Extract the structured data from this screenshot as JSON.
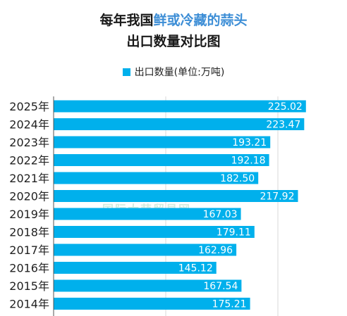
{
  "header": {
    "title_prefix": "每年我国",
    "title_highlight": "鲜或冷藏的蒜头",
    "title_line2": "出口数量对比图"
  },
  "legend": {
    "label": "出口数量(单位:万吨)"
  },
  "watermark": "国际大蒜贸易网",
  "colors": {
    "bar": "#00b0ec",
    "highlight": "#3d8ed6",
    "grid": "#d9d9d9"
  },
  "chart_data": {
    "type": "bar",
    "orientation": "horizontal",
    "categories": [
      "2025年",
      "2024年",
      "2023年",
      "2022年",
      "2021年",
      "2020年",
      "2019年",
      "2018年",
      "2017年",
      "2016年",
      "2015年",
      "2014年"
    ],
    "series": [
      {
        "name": "出口数量(单位:万吨)",
        "values": [
          225.02,
          223.47,
          193.21,
          192.18,
          182.5,
          217.92,
          167.03,
          179.11,
          162.96,
          145.12,
          167.54,
          175.21
        ]
      }
    ],
    "xlim": [
      0,
      250
    ],
    "grid": true,
    "legend_position": "top"
  }
}
